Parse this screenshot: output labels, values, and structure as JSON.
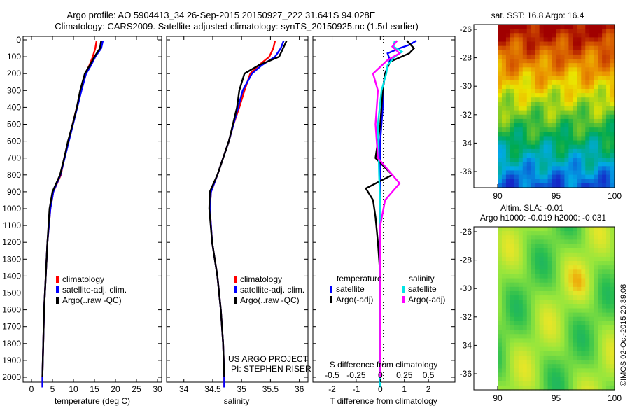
{
  "header": {
    "line1": "Argo profile: AO 5904413_34 26-Sep-2015 20150927_222 31.641S 94.028E",
    "line2": "Climatology: CARS2009. Satellite-adjusted climatology: synTS_20150925.nc (1.5d earlier)"
  },
  "colors": {
    "climatology": "#ff0000",
    "satellite_adj": "#0000ff",
    "argo": "#000000",
    "satellite_S": "#00e5e5",
    "argo_adj_S": "#ff00ff"
  },
  "chart_data": [
    {
      "type": "line",
      "name": "temperature-profile",
      "xlabel": "temperature (deg C)",
      "xlim": [
        -2,
        31
      ],
      "ylim": [
        0,
        2080
      ],
      "y_inverted": true,
      "xticks": [
        "0",
        "5",
        "10",
        "15",
        "20",
        "25",
        "30"
      ],
      "yticks": [
        "0",
        "100",
        "200",
        "300",
        "400",
        "500",
        "600",
        "700",
        "800",
        "900",
        "1000",
        "1100",
        "1200",
        "1300",
        "1400",
        "1500",
        "1600",
        "1700",
        "1800",
        "1900",
        "2000"
      ],
      "legend": [
        "climatology",
        "satellite-adj. clim.",
        "Argo(..raw -QC)"
      ],
      "series": [
        {
          "name": "climatology",
          "color_key": "climatology",
          "points": [
            [
              15.5,
              5
            ],
            [
              15.2,
              50
            ],
            [
              14.6,
              100
            ],
            [
              13.8,
              150
            ],
            [
              12.8,
              200
            ],
            [
              11.8,
              300
            ],
            [
              10.8,
              400
            ],
            [
              9.8,
              500
            ],
            [
              8.8,
              600
            ],
            [
              7.8,
              700
            ],
            [
              7.0,
              800
            ],
            [
              5.2,
              900
            ],
            [
              4.5,
              1000
            ],
            [
              3.8,
              1200
            ],
            [
              3.4,
              1400
            ],
            [
              3.0,
              1600
            ],
            [
              2.8,
              1800
            ],
            [
              2.6,
              2000
            ],
            [
              2.6,
              2060
            ]
          ]
        },
        {
          "name": "satellite-adj. clim.",
          "color_key": "satellite_adj",
          "points": [
            [
              17.0,
              5
            ],
            [
              16.6,
              50
            ],
            [
              15.2,
              100
            ],
            [
              14.2,
              150
            ],
            [
              13.0,
              200
            ],
            [
              11.9,
              300
            ],
            [
              10.9,
              400
            ],
            [
              9.9,
              500
            ],
            [
              8.9,
              600
            ],
            [
              7.9,
              700
            ],
            [
              6.9,
              800
            ],
            [
              5.2,
              900
            ],
            [
              4.5,
              1000
            ],
            [
              3.8,
              1200
            ],
            [
              3.4,
              1400
            ],
            [
              3.0,
              1600
            ],
            [
              2.8,
              1800
            ],
            [
              2.6,
              2000
            ],
            [
              2.6,
              2060
            ]
          ]
        },
        {
          "name": "Argo(..raw -QC)",
          "color_key": "argo",
          "points": [
            [
              16.6,
              5
            ],
            [
              16.3,
              50
            ],
            [
              15.0,
              100
            ],
            [
              13.9,
              150
            ],
            [
              12.7,
              200
            ],
            [
              11.6,
              300
            ],
            [
              10.8,
              400
            ],
            [
              9.8,
              500
            ],
            [
              8.7,
              600
            ],
            [
              7.8,
              700
            ],
            [
              6.8,
              800
            ],
            [
              5.0,
              900
            ],
            [
              4.3,
              1000
            ],
            [
              3.8,
              1200
            ],
            [
              3.4,
              1400
            ],
            [
              3.0,
              1600
            ],
            [
              2.8,
              1800
            ],
            [
              2.6,
              2000
            ]
          ]
        }
      ]
    },
    {
      "type": "line",
      "name": "salinity-profile",
      "xlabel": "salinity",
      "xlim": [
        33.7,
        36.15
      ],
      "ylim": [
        0,
        2080
      ],
      "y_inverted": true,
      "xticks": [
        "34",
        "34.5",
        "35",
        "35.5",
        "36"
      ],
      "legend": [
        "climatology",
        "satellite-adj. clim.",
        "Argo(..raw -QC)"
      ],
      "annotation": [
        "US ARGO PROJECT",
        "PI: STEPHEN RISER"
      ],
      "series": [
        {
          "name": "climatology",
          "color_key": "climatology",
          "points": [
            [
              35.58,
              5
            ],
            [
              35.55,
              50
            ],
            [
              35.48,
              100
            ],
            [
              35.3,
              150
            ],
            [
              35.15,
              200
            ],
            [
              35.05,
              300
            ],
            [
              34.96,
              400
            ],
            [
              34.86,
              500
            ],
            [
              34.78,
              600
            ],
            [
              34.68,
              700
            ],
            [
              34.58,
              800
            ],
            [
              34.47,
              900
            ],
            [
              34.45,
              1000
            ],
            [
              34.49,
              1200
            ],
            [
              34.58,
              1400
            ],
            [
              34.64,
              1600
            ],
            [
              34.68,
              1800
            ],
            [
              34.7,
              2000
            ],
            [
              34.7,
              2060
            ]
          ]
        },
        {
          "name": "satellite-adj. clim.",
          "color_key": "satellite_adj",
          "points": [
            [
              35.73,
              5
            ],
            [
              35.68,
              50
            ],
            [
              35.58,
              100
            ],
            [
              35.35,
              150
            ],
            [
              35.18,
              200
            ],
            [
              35.02,
              300
            ],
            [
              34.94,
              400
            ],
            [
              34.86,
              500
            ],
            [
              34.78,
              600
            ],
            [
              34.68,
              700
            ],
            [
              34.58,
              800
            ],
            [
              34.47,
              900
            ],
            [
              34.45,
              1000
            ],
            [
              34.49,
              1200
            ],
            [
              34.58,
              1400
            ],
            [
              34.64,
              1600
            ],
            [
              34.68,
              1800
            ],
            [
              34.7,
              2000
            ],
            [
              34.7,
              2060
            ]
          ]
        },
        {
          "name": "Argo(..raw -QC)",
          "color_key": "argo",
          "points": [
            [
              35.78,
              5
            ],
            [
              35.72,
              50
            ],
            [
              35.65,
              100
            ],
            [
              35.3,
              150
            ],
            [
              35.05,
              200
            ],
            [
              34.96,
              300
            ],
            [
              34.92,
              400
            ],
            [
              34.85,
              500
            ],
            [
              34.78,
              600
            ],
            [
              34.68,
              700
            ],
            [
              34.58,
              800
            ],
            [
              34.45,
              900
            ],
            [
              34.44,
              1000
            ],
            [
              34.49,
              1200
            ],
            [
              34.58,
              1400
            ],
            [
              34.64,
              1600
            ],
            [
              34.68,
              1800
            ],
            [
              34.7,
              2000
            ]
          ]
        }
      ]
    },
    {
      "type": "line",
      "name": "difference-profile",
      "xlabel": "T difference from climatology",
      "xlabel_top": "S difference from climatology",
      "xlim": [
        -2.8,
        3.1
      ],
      "ylim": [
        0,
        2080
      ],
      "y_inverted": true,
      "xticks": [
        "-2",
        "-1",
        "0",
        "1",
        "2"
      ],
      "xticks_top": [
        "-0.5",
        "-0.25",
        "0",
        "0.25",
        "0.5"
      ],
      "legend_titles": [
        "temperature",
        "salinity"
      ],
      "legend": [
        "satellite",
        "Argo(-adj)",
        "satellite",
        "Argo(-adj)"
      ],
      "series": [
        {
          "name": "temperature satellite",
          "color_key": "satellite_adj",
          "points": [
            [
              1.5,
              5
            ],
            [
              1.2,
              30
            ],
            [
              0.8,
              50
            ],
            [
              0.3,
              80
            ],
            [
              0.4,
              120
            ],
            [
              0.2,
              200
            ],
            [
              0.1,
              300
            ],
            [
              0.1,
              400
            ],
            [
              0.0,
              600
            ],
            [
              0.0,
              800
            ],
            [
              0.0,
              1000
            ],
            [
              0.0,
              2060
            ]
          ]
        },
        {
          "name": "temperature Argo(-adj)",
          "color_key": "argo",
          "points": [
            [
              1.1,
              5
            ],
            [
              1.4,
              50
            ],
            [
              1.2,
              80
            ],
            [
              0.4,
              130
            ],
            [
              0.2,
              200
            ],
            [
              0.1,
              300
            ],
            [
              0.0,
              500
            ],
            [
              -0.2,
              700
            ],
            [
              0.5,
              800
            ],
            [
              -0.6,
              880
            ],
            [
              -0.3,
              950
            ],
            [
              -0.2,
              1050
            ],
            [
              -0.1,
              1200
            ],
            [
              0.0,
              1400
            ],
            [
              0.0,
              2000
            ]
          ]
        },
        {
          "name": "salinity satellite",
          "color_key": "satellite_S",
          "points": [
            [
              0.6,
              5
            ],
            [
              0.55,
              40
            ],
            [
              0.9,
              70
            ],
            [
              0.6,
              100
            ],
            [
              0.3,
              150
            ],
            [
              0.25,
              200
            ],
            [
              0.05,
              300
            ],
            [
              -0.1,
              500
            ],
            [
              -0.05,
              800
            ],
            [
              0.0,
              1000
            ],
            [
              0.0,
              2060
            ]
          ]
        },
        {
          "name": "salinity Argo(-adj)",
          "color_key": "argo_adj_S",
          "points": [
            [
              0.7,
              5
            ],
            [
              0.5,
              40
            ],
            [
              0.8,
              80
            ],
            [
              0.3,
              120
            ],
            [
              -0.3,
              200
            ],
            [
              -0.1,
              300
            ],
            [
              -0.2,
              500
            ],
            [
              -0.1,
              700
            ],
            [
              0.8,
              850
            ],
            [
              0.2,
              950
            ],
            [
              0.0,
              1100
            ],
            [
              0.0,
              2000
            ]
          ]
        }
      ]
    },
    {
      "type": "heatmap",
      "name": "sst-map",
      "title": "sat. SST: 16.8  Argo: 16.4",
      "xticks": [
        "90",
        "95",
        "100"
      ],
      "yticks": [
        "-26",
        "-28",
        "-30",
        "-32",
        "-34",
        "-36"
      ]
    },
    {
      "type": "heatmap",
      "name": "sla-map",
      "title": [
        "Altim. SLA: -0.01",
        "Argo h1000: -0.019  h2000: -0.031"
      ],
      "xticks": [
        "90",
        "95",
        "100"
      ],
      "yticks": [
        "-26",
        "-28",
        "-30",
        "-32",
        "-34",
        "-36"
      ],
      "side_label": "©IMOS 02-Oct-2015 20:39:08"
    }
  ]
}
